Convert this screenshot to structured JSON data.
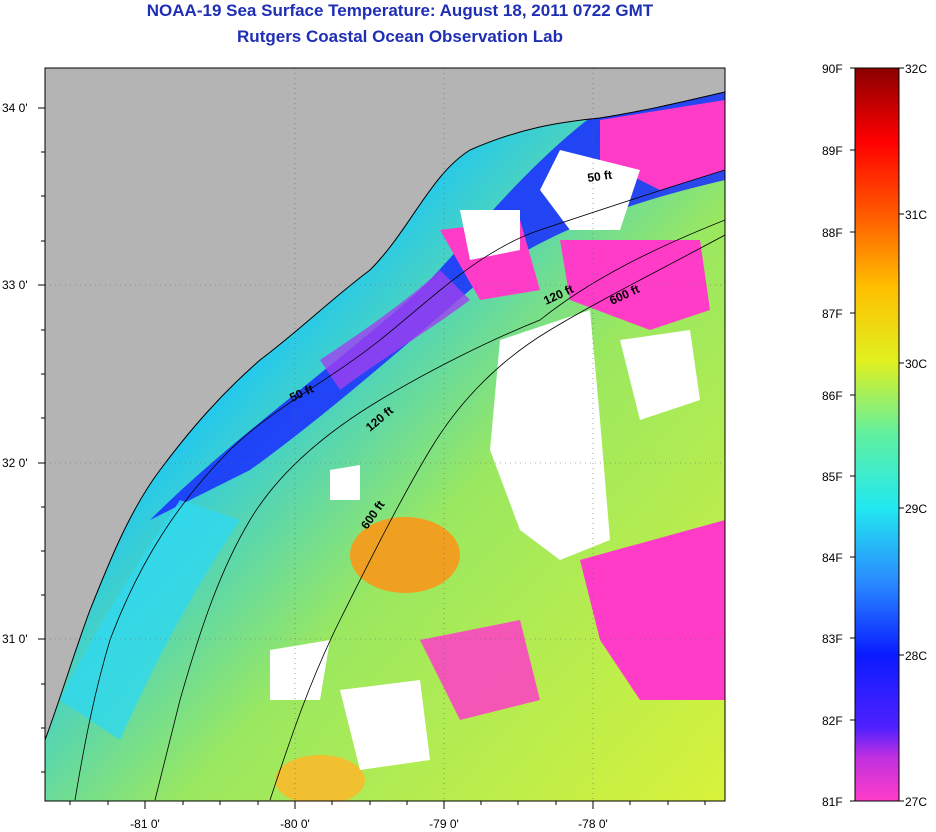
{
  "header": {
    "title": "NOAA-19 Sea Surface Temperature:  August 18, 2011 0722 GMT",
    "subtitle": "Rutgers Coastal Ocean Observation Lab"
  },
  "map": {
    "lat_ticks": [
      "34 0'",
      "33 0'",
      "32 0'",
      "31 0'"
    ],
    "lon_ticks": [
      "-81 0'",
      "-80 0'",
      "-79 0'",
      "-78 0'"
    ],
    "isobath_labels": [
      "50 ft",
      "120 ft",
      "600 ft",
      "50 ft",
      "120 ft",
      "600 ft"
    ]
  },
  "colorbar": {
    "fahrenheit": [
      "90F",
      "89F",
      "88F",
      "87F",
      "86F",
      "85F",
      "84F",
      "83F",
      "82F",
      "81F"
    ],
    "celsius": [
      "32C",
      "31C",
      "30C",
      "29C",
      "28C",
      "27C"
    ]
  },
  "colors": {
    "land": "#b4b4b4",
    "cloud_mask": "#ffffff",
    "cold": "#ff3cc8",
    "title": "#1f2fb4"
  }
}
